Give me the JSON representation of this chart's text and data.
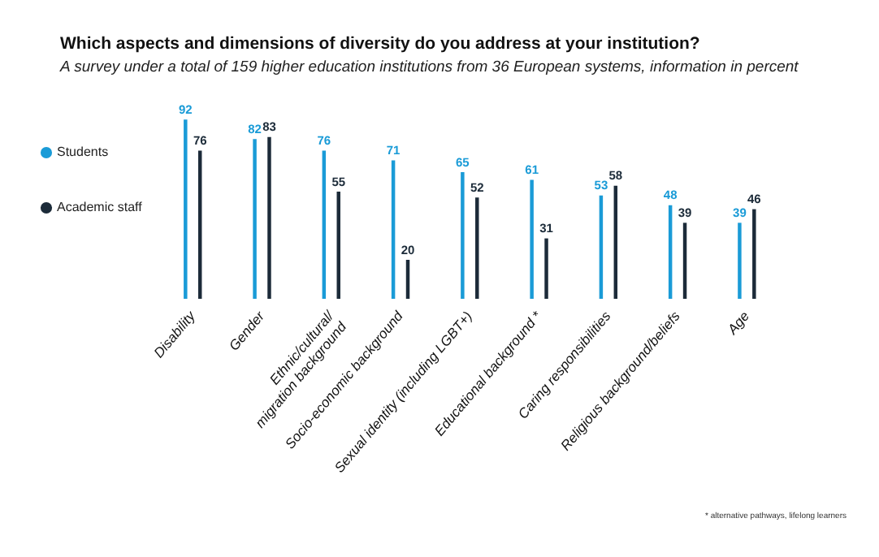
{
  "chart_data": {
    "type": "bar",
    "title": "Which aspects and dimensions of diversity do you address at your institution?",
    "subtitle": "A survey under a total of 159 higher education institutions from 36 European systems, information in percent",
    "categories": [
      "Disability",
      "Gender",
      "Ethnic/cultural/\nmigration background",
      "Socio-economic background",
      "Sexual identity (including LGBT+)",
      "Educational background *",
      "Caring responsibilities",
      "Religious background/beliefs",
      "Age"
    ],
    "series": [
      {
        "name": "Students",
        "color": "#1a9bd7",
        "values": [
          92,
          82,
          76,
          71,
          65,
          61,
          53,
          48,
          39
        ]
      },
      {
        "name": "Academic staff",
        "color": "#1c2b39",
        "values": [
          76,
          83,
          55,
          20,
          52,
          31,
          58,
          39,
          46
        ]
      }
    ],
    "data_labels": true,
    "legend": "left",
    "grid": false,
    "annotations": [
      "* alternative pathways, lifelong learners"
    ]
  }
}
